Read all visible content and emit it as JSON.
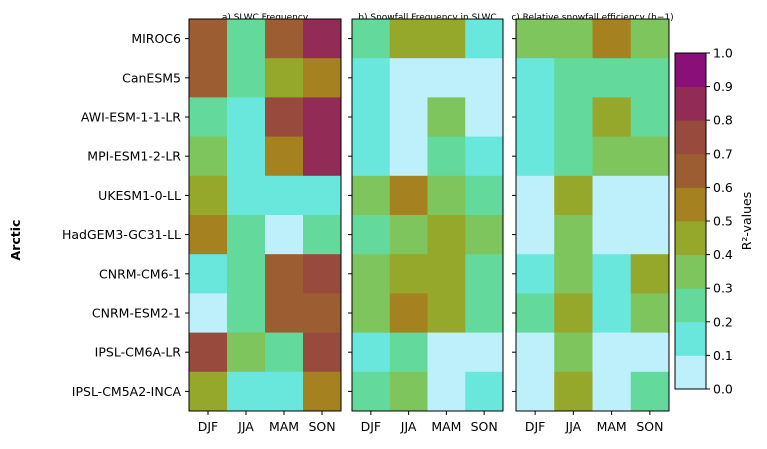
{
  "region_label": "Arctic",
  "chart_data": {
    "type": "heatmap",
    "models": [
      "MIROC6",
      "CanESM5",
      "AWI-ESM-1-1-LR",
      "MPI-ESM1-2-LR",
      "UKESM1-0-LL",
      "HadGEM3-GC31-LL",
      "CNRM-CM6-1",
      "CNRM-ESM2-1",
      "IPSL-CM6A-LR",
      "IPSL-CM5A2-INCA"
    ],
    "seasons": [
      "DJF",
      "JJA",
      "MAM",
      "SON"
    ],
    "panels": [
      {
        "title": "a) SLWC Frequency",
        "values": [
          [
            0.65,
            0.25,
            0.65,
            0.85
          ],
          [
            0.65,
            0.25,
            0.45,
            0.55
          ],
          [
            0.25,
            0.15,
            0.75,
            0.85
          ],
          [
            0.35,
            0.15,
            0.55,
            0.85
          ],
          [
            0.45,
            0.15,
            0.15,
            0.15
          ],
          [
            0.55,
            0.25,
            0.05,
            0.25
          ],
          [
            0.15,
            0.25,
            0.65,
            0.75
          ],
          [
            0.05,
            0.25,
            0.65,
            0.65
          ],
          [
            0.75,
            0.35,
            0.25,
            0.75
          ],
          [
            0.45,
            0.15,
            0.15,
            0.55
          ]
        ]
      },
      {
        "title": "b) Snowfall Frequency in SLWC",
        "values": [
          [
            0.25,
            0.45,
            0.45,
            0.15
          ],
          [
            0.15,
            0.05,
            0.05,
            0.05
          ],
          [
            0.15,
            0.05,
            0.35,
            0.05
          ],
          [
            0.15,
            0.05,
            0.25,
            0.15
          ],
          [
            0.35,
            0.55,
            0.35,
            0.25
          ],
          [
            0.25,
            0.35,
            0.45,
            0.35
          ],
          [
            0.35,
            0.45,
            0.45,
            0.25
          ],
          [
            0.35,
            0.55,
            0.45,
            0.25
          ],
          [
            0.15,
            0.25,
            0.05,
            0.05
          ],
          [
            0.25,
            0.35,
            0.05,
            0.15
          ]
        ]
      },
      {
        "title": "c) Relative snowfall efficiency (h−1)",
        "values": [
          [
            0.35,
            0.35,
            0.55,
            0.35
          ],
          [
            0.15,
            0.25,
            0.25,
            0.25
          ],
          [
            0.15,
            0.25,
            0.45,
            0.25
          ],
          [
            0.15,
            0.25,
            0.35,
            0.35
          ],
          [
            0.05,
            0.45,
            0.05,
            0.05
          ],
          [
            0.05,
            0.35,
            0.05,
            0.05
          ],
          [
            0.15,
            0.35,
            0.15,
            0.45
          ],
          [
            0.25,
            0.45,
            0.15,
            0.35
          ],
          [
            0.05,
            0.35,
            0.05,
            0.05
          ],
          [
            0.05,
            0.45,
            0.05,
            0.25
          ]
        ]
      }
    ],
    "colorbar": {
      "label": "R²-values",
      "range": [
        0,
        1
      ],
      "ticks": [
        "0.0",
        "0.1",
        "0.2",
        "0.3",
        "0.4",
        "0.5",
        "0.6",
        "0.7",
        "0.8",
        "0.9",
        "1.0"
      ],
      "colors": [
        "#bdf0fb",
        "#6ae7dd",
        "#64d99c",
        "#7dc55c",
        "#96a82b",
        "#a5821f",
        "#9b5d31",
        "#984b3c",
        "#922c56",
        "#8a0f78"
      ]
    }
  }
}
